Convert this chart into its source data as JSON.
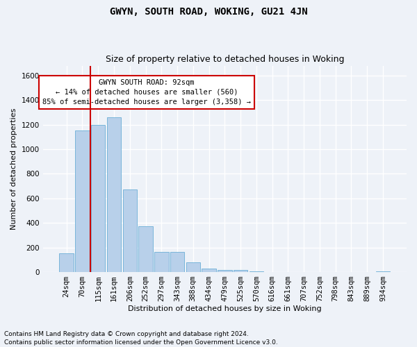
{
  "title": "GWYN, SOUTH ROAD, WOKING, GU21 4JN",
  "subtitle": "Size of property relative to detached houses in Woking",
  "xlabel": "Distribution of detached houses by size in Woking",
  "ylabel": "Number of detached properties",
  "categories": [
    "24sqm",
    "70sqm",
    "115sqm",
    "161sqm",
    "206sqm",
    "252sqm",
    "297sqm",
    "343sqm",
    "388sqm",
    "434sqm",
    "479sqm",
    "525sqm",
    "570sqm",
    "616sqm",
    "661sqm",
    "707sqm",
    "752sqm",
    "798sqm",
    "843sqm",
    "889sqm",
    "934sqm"
  ],
  "values": [
    155,
    1150,
    1200,
    1260,
    670,
    375,
    165,
    165,
    80,
    30,
    20,
    15,
    8,
    3,
    2,
    1,
    1,
    0,
    0,
    0,
    5
  ],
  "bar_color": "#b8d0ea",
  "bar_edgecolor": "#6aaed6",
  "vline_x_index": 1.5,
  "vline_color": "#cc0000",
  "annotation_text": "GWYN SOUTH ROAD: 92sqm\n← 14% of detached houses are smaller (560)\n85% of semi-detached houses are larger (3,358) →",
  "annotation_box_edgecolor": "#cc0000",
  "annotation_box_facecolor": "#ffffff",
  "ylim": [
    0,
    1680
  ],
  "yticks": [
    0,
    200,
    400,
    600,
    800,
    1000,
    1200,
    1400,
    1600
  ],
  "footer_line1": "Contains HM Land Registry data © Crown copyright and database right 2024.",
  "footer_line2": "Contains public sector information licensed under the Open Government Licence v3.0.",
  "background_color": "#eef2f8",
  "grid_color": "#ffffff",
  "title_fontsize": 10,
  "subtitle_fontsize": 9,
  "axis_label_fontsize": 8,
  "tick_labelsize": 7.5,
  "footer_fontsize": 6.5
}
